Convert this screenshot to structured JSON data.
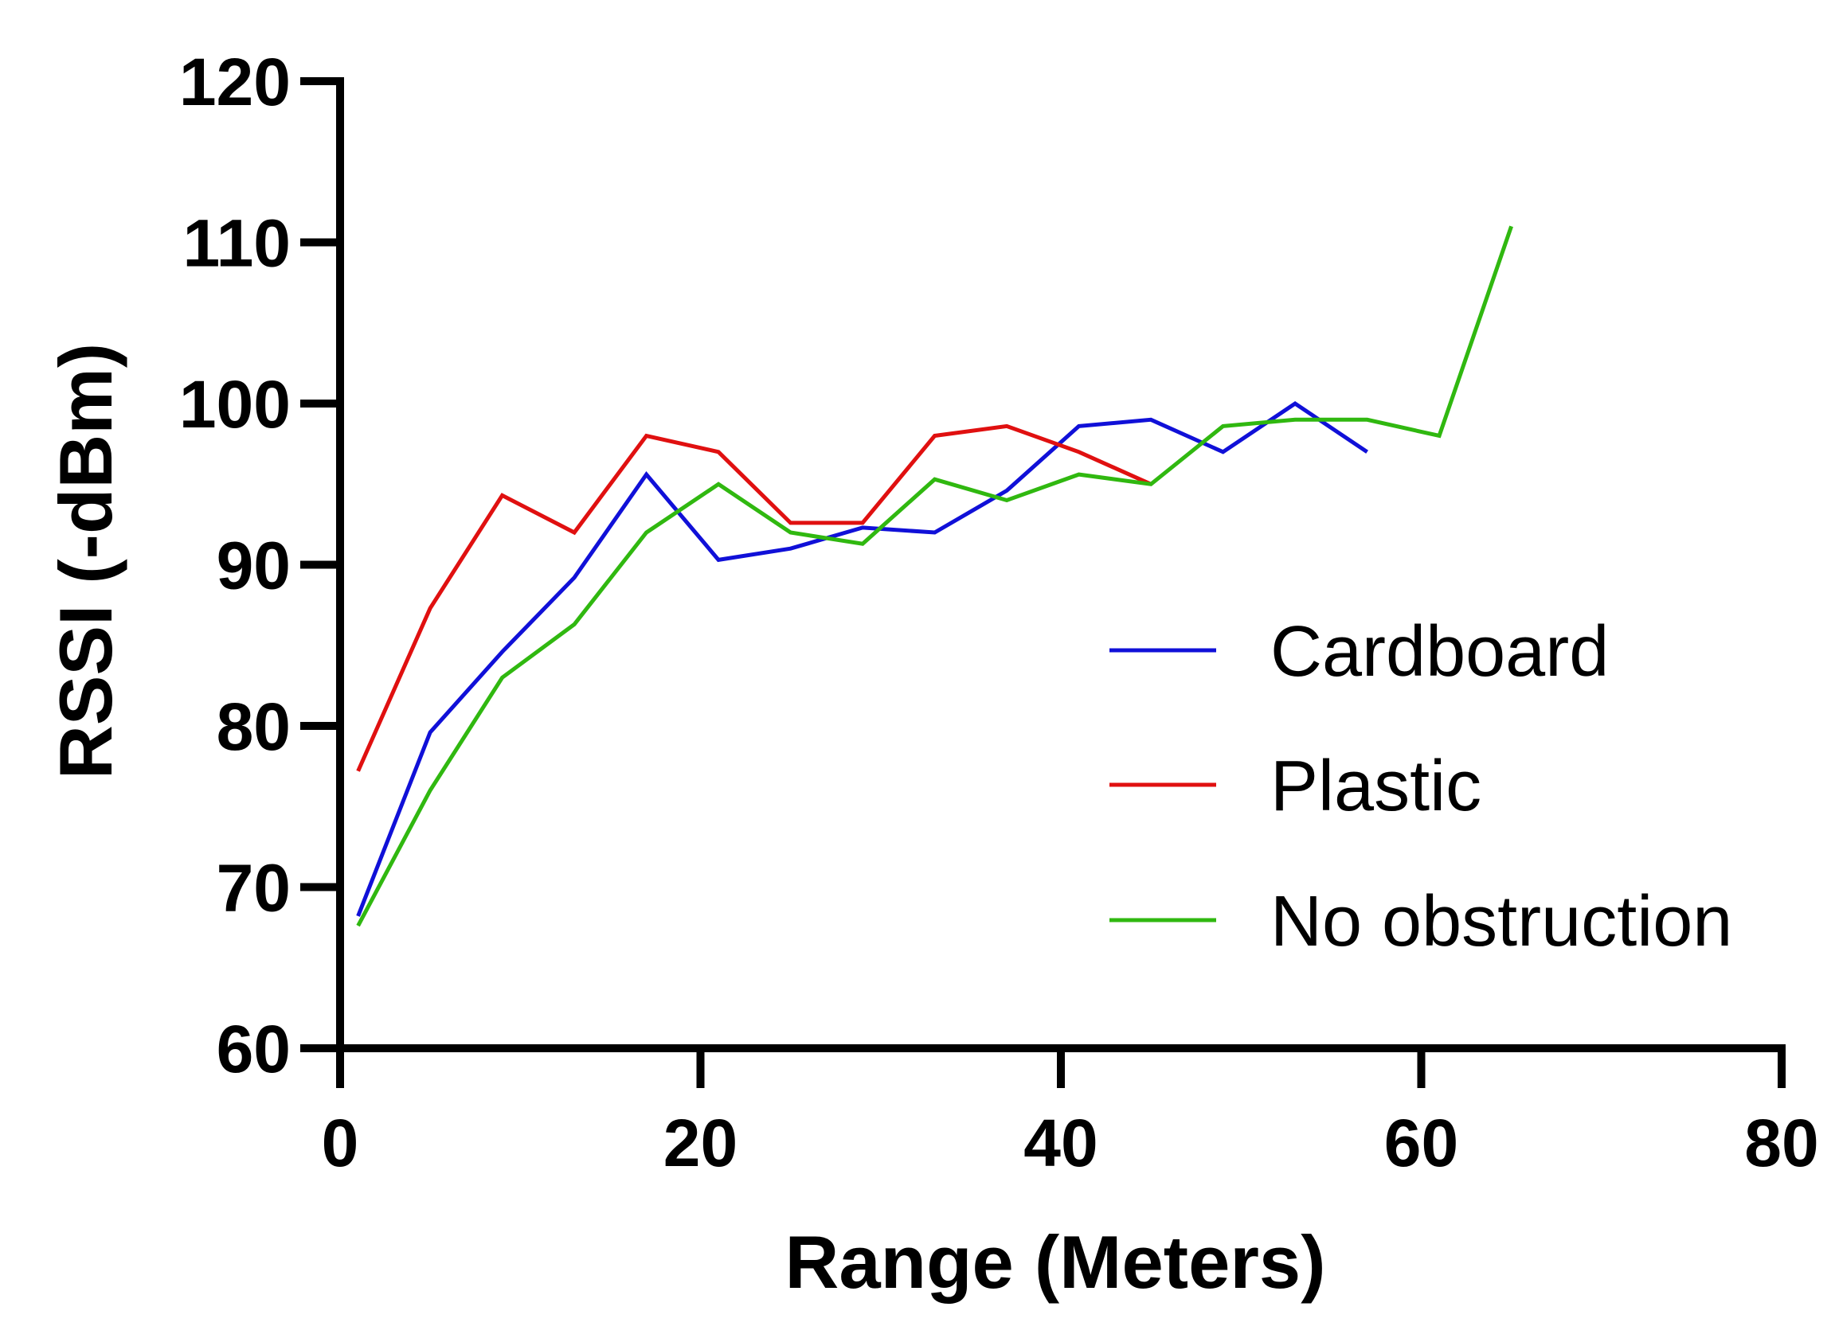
{
  "chart_data": {
    "type": "line",
    "title": "",
    "xlabel": "Range (Meters)",
    "ylabel": "RSSI (-dBm)",
    "xlim": [
      0,
      80
    ],
    "ylim": [
      60,
      120
    ],
    "xticks": [
      0,
      20,
      40,
      60,
      80
    ],
    "yticks": [
      60,
      70,
      80,
      90,
      100,
      110,
      120
    ],
    "grid": false,
    "legend_position": "right",
    "series": [
      {
        "name": "Cardboard",
        "color": "#1010d8",
        "x": [
          1,
          5,
          9,
          13,
          17,
          21,
          25,
          29,
          33,
          37,
          41,
          45,
          49,
          53,
          57
        ],
        "y": [
          68.2,
          79.6,
          84.6,
          89.2,
          95.6,
          90.3,
          91,
          92.3,
          92,
          94.6,
          98.6,
          99,
          97,
          100,
          97
        ]
      },
      {
        "name": "Plastic",
        "color": "#e01010",
        "x": [
          1,
          5,
          9,
          13,
          17,
          21,
          25,
          29,
          33,
          37,
          41,
          45
        ],
        "y": [
          77.2,
          87.3,
          94.3,
          92,
          98,
          97,
          92.6,
          92.6,
          98,
          98.6,
          97,
          95
        ]
      },
      {
        "name": "No obstruction",
        "color": "#30b810",
        "x": [
          1,
          5,
          9,
          13,
          17,
          21,
          25,
          29,
          33,
          37,
          41,
          45,
          49,
          53,
          57,
          61,
          65
        ],
        "y": [
          67.6,
          76,
          83,
          86.3,
          92,
          95,
          92,
          91.3,
          95.3,
          94,
          95.6,
          95,
          98.6,
          99,
          99,
          98,
          111
        ]
      }
    ]
  }
}
